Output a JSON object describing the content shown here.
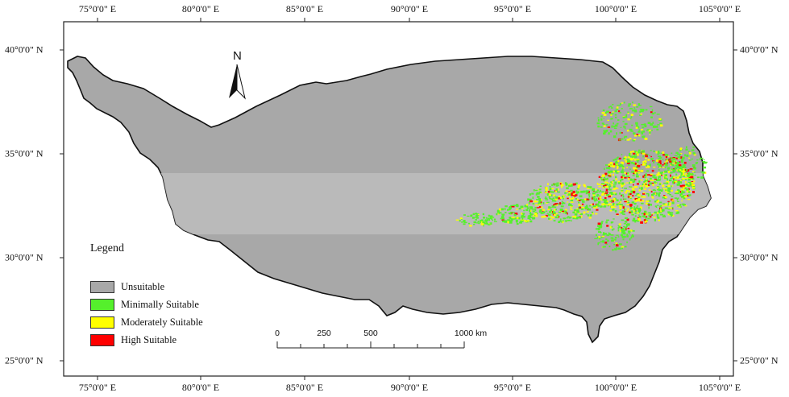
{
  "map": {
    "top_labels": [
      "75°0'0\" E",
      "80°0'0\" E",
      "85°0'0\" E",
      "90°0'0\" E",
      "95°0'0\" E",
      "100°0'0\" E",
      "105°0'0\" E"
    ],
    "bottom_labels": [
      "75°0'0\" E",
      "80°0'0\" E",
      "85°0'0\" E",
      "90°0'0\" E",
      "95°0'0\" E",
      "100°0'0\" E",
      "105°0'0\" E"
    ],
    "left_labels": [
      "40°0'0\" N",
      "35°0'0\" N",
      "30°0'0\" N",
      "25°0'0\" N"
    ],
    "right_labels": [
      "40°0'0\" N",
      "35°0'0\" N",
      "30°0'0\" N",
      "25°0'0\" N"
    ],
    "north_label": "N"
  },
  "legend": {
    "title": "Legend",
    "items": [
      {
        "label": "Unsuitable",
        "color": "#a8a8a8"
      },
      {
        "label": "Minimally Suitable",
        "color": "#55f02c"
      },
      {
        "label": "Moderately Suitable",
        "color": "#ffff00"
      },
      {
        "label": "High Suitable",
        "color": "#ff0000"
      }
    ]
  },
  "scale_bar": {
    "labels": [
      "0",
      "250",
      "500",
      "1000 km"
    ]
  },
  "colors": {
    "unsuitable": "#a8a8a8",
    "minimally": "#55f02c",
    "moderately": "#ffff00",
    "high": "#ff0000"
  }
}
